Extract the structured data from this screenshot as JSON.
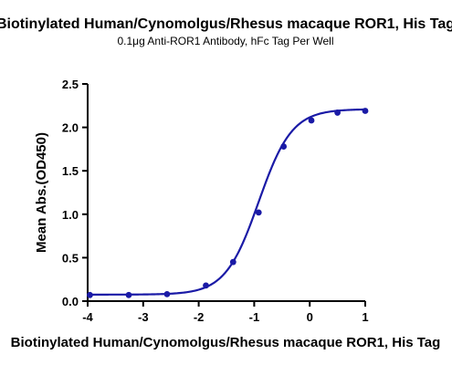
{
  "chart_data": {
    "type": "scatter",
    "title": "Biotinylated Human/Cynomolgus/Rhesus macaque ROR1, His Tag",
    "subtitle": "0.1μg Anti-ROR1 Antibody, hFc Tag Per Well",
    "xlabel": "Biotinylated Human/Cynomolgus/Rhesus macaque ROR1, His Tag",
    "ylabel": "Mean Abs.(OD450)",
    "xlim": [
      -4,
      1
    ],
    "ylim": [
      0,
      2.5
    ],
    "xticks": [
      "-4",
      "-3",
      "-2",
      "-1",
      "0",
      "1"
    ],
    "yticks": [
      "0.0",
      "0.5",
      "1.0",
      "1.5",
      "2.0",
      "2.5"
    ],
    "grid": false,
    "series": [
      {
        "x": [
          -3.96,
          -3.26,
          -2.57,
          -1.87,
          -1.38,
          -0.92,
          -0.47,
          0.03,
          0.5,
          1.0
        ],
        "y": [
          0.07,
          0.07,
          0.08,
          0.18,
          0.45,
          1.02,
          1.78,
          2.08,
          2.17,
          2.19
        ]
      }
    ],
    "fit": {
      "bottom": 0.075,
      "top": 2.21,
      "logEC50": -0.92,
      "hill": 1.45
    },
    "colors": {
      "series": "#1a1aa6"
    }
  }
}
